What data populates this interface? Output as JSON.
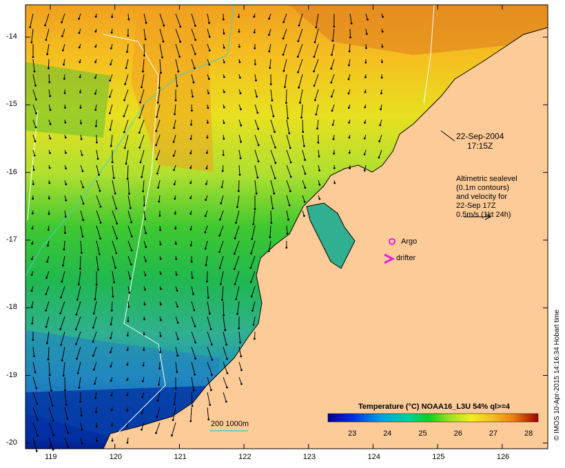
{
  "annotations": {
    "timestamp_date": "22-Sep-2004",
    "timestamp_time": "17:15Z",
    "alt_line1": "Altimetric sealevel",
    "alt_line2": "(0.1m contours)",
    "alt_line3": "and velocity for",
    "alt_line4": "22-Sep 17Z",
    "alt_line5": "0.5m/s (1kt 24h)",
    "argo_label": "Argo",
    "drifter_label": "drifter",
    "isobath_label": "200  1000m"
  },
  "colorbar": {
    "title": "Temperature (°C) NOAA16_L3U 54% ql>=4",
    "ticks": [
      "23",
      "24",
      "25",
      "26",
      "27",
      "28"
    ]
  },
  "axes": {
    "x_ticks": [
      "119",
      "120",
      "121",
      "122",
      "123",
      "124",
      "125",
      "126"
    ],
    "y_ticks": [
      "-14",
      "-15",
      "-16",
      "-17",
      "-18",
      "-19",
      "-20"
    ]
  },
  "credit": "© IMOS 10-Apr-2015 14:16:34 Hobart time",
  "colors": {
    "land": "#fdcb98",
    "argo": "#e020e0",
    "drifter": "#e020e0",
    "isobath": "#40d0d0"
  }
}
